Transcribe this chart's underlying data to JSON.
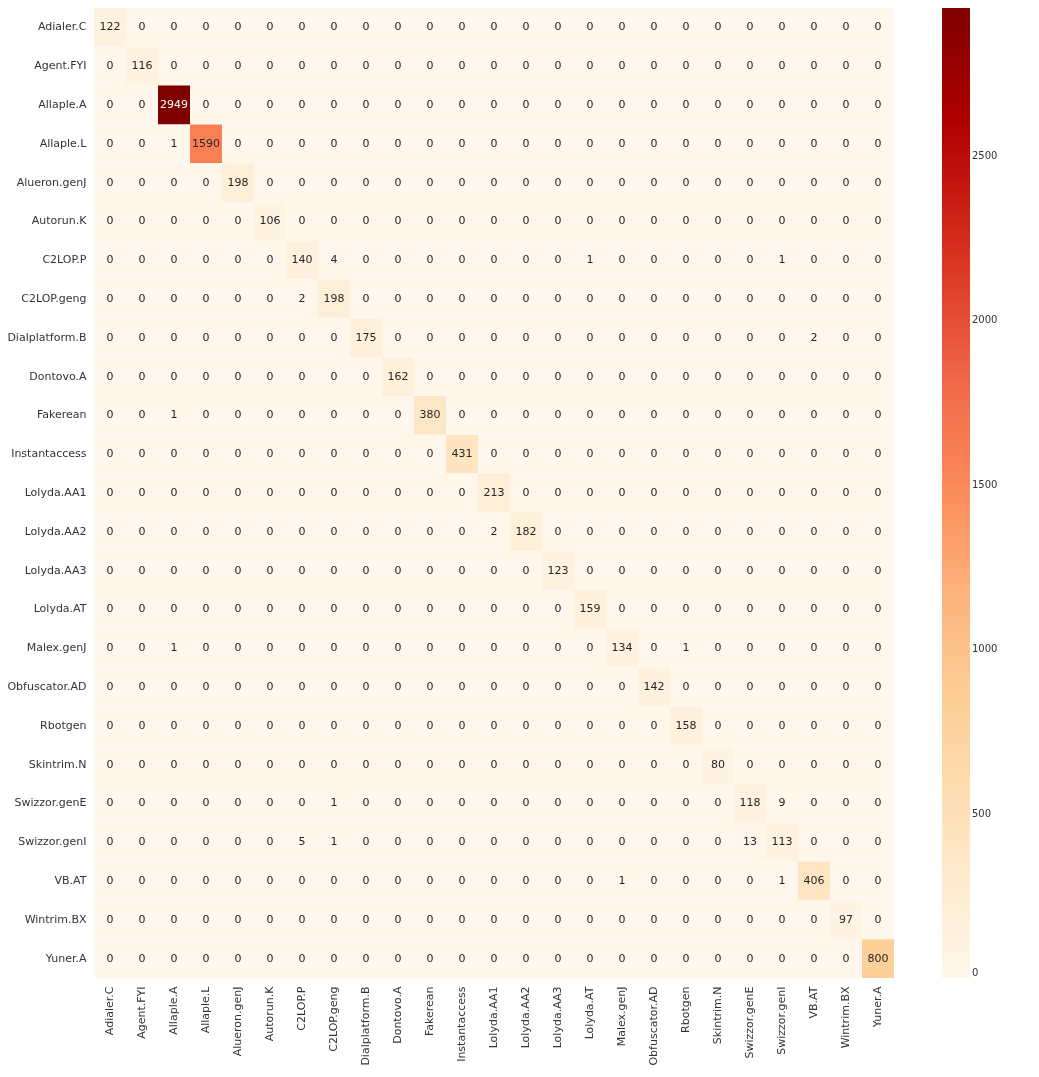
{
  "chart_data": {
    "type": "heatmap",
    "categories": [
      "Adialer.C",
      "Agent.FYI",
      "Allaple.A",
      "Allaple.L",
      "Alueron.genJ",
      "Autorun.K",
      "C2LOP.P",
      "C2LOP.geng",
      "Dialplatform.B",
      "Dontovo.A",
      "Fakerean",
      "Instantaccess",
      "Lolyda.AA1",
      "Lolyda.AA2",
      "Lolyda.AA3",
      "Lolyda.AT",
      "Malex.genJ",
      "Obfuscator.AD",
      "Rbotgen",
      "Skintrim.N",
      "Swizzor.genE",
      "Swizzor.genI",
      "VB.AT",
      "Wintrim.BX",
      "Yuner.A"
    ],
    "y_categories": [
      "Adialer.C",
      "Agent.FYI",
      "Allaple.A",
      "Allaple.L",
      "Alueron.genJ",
      "Autorun.K",
      "C2LOP.P",
      "C2LOP.geng",
      "Dialplatform.B",
      "Dontovo.A",
      "Fakerean",
      "Instantaccess",
      "Lolyda.AA1",
      "Lolyda.AA2",
      "Lolyda.AA3",
      "Lolyda.AT",
      "Malex.genJ",
      "Obfuscator.AD",
      "Rbotgen",
      "Skintrim.N",
      "Swizzor.genE",
      "Swizzor.genI",
      "VB.AT",
      "Wintrim.BX",
      "Yuner.A"
    ],
    "cells": [
      [
        122,
        0,
        0,
        0,
        0,
        0,
        0,
        0,
        0,
        0,
        0,
        0,
        0,
        0,
        0,
        0,
        0,
        0,
        0,
        0,
        0,
        0,
        0,
        0,
        0
      ],
      [
        0,
        116,
        0,
        0,
        0,
        0,
        0,
        0,
        0,
        0,
        0,
        0,
        0,
        0,
        0,
        0,
        0,
        0,
        0,
        0,
        0,
        0,
        0,
        0,
        0
      ],
      [
        0,
        0,
        2949,
        0,
        0,
        0,
        0,
        0,
        0,
        0,
        0,
        0,
        0,
        0,
        0,
        0,
        0,
        0,
        0,
        0,
        0,
        0,
        0,
        0,
        0
      ],
      [
        0,
        0,
        1,
        1590,
        0,
        0,
        0,
        0,
        0,
        0,
        0,
        0,
        0,
        0,
        0,
        0,
        0,
        0,
        0,
        0,
        0,
        0,
        0,
        0,
        0
      ],
      [
        0,
        0,
        0,
        0,
        198,
        0,
        0,
        0,
        0,
        0,
        0,
        0,
        0,
        0,
        0,
        0,
        0,
        0,
        0,
        0,
        0,
        0,
        0,
        0,
        0
      ],
      [
        0,
        0,
        0,
        0,
        0,
        106,
        0,
        0,
        0,
        0,
        0,
        0,
        0,
        0,
        0,
        0,
        0,
        0,
        0,
        0,
        0,
        0,
        0,
        0,
        0
      ],
      [
        0,
        0,
        0,
        0,
        0,
        0,
        140,
        4,
        0,
        0,
        0,
        0,
        0,
        0,
        0,
        1,
        0,
        0,
        0,
        0,
        0,
        1,
        0,
        0,
        0
      ],
      [
        0,
        0,
        0,
        0,
        0,
        0,
        2,
        198,
        0,
        0,
        0,
        0,
        0,
        0,
        0,
        0,
        0,
        0,
        0,
        0,
        0,
        0,
        0,
        0,
        0
      ],
      [
        0,
        0,
        0,
        0,
        0,
        0,
        0,
        0,
        175,
        0,
        0,
        0,
        0,
        0,
        0,
        0,
        0,
        0,
        0,
        0,
        0,
        0,
        2,
        0,
        0
      ],
      [
        0,
        0,
        0,
        0,
        0,
        0,
        0,
        0,
        0,
        162,
        0,
        0,
        0,
        0,
        0,
        0,
        0,
        0,
        0,
        0,
        0,
        0,
        0,
        0,
        0
      ],
      [
        0,
        0,
        1,
        0,
        0,
        0,
        0,
        0,
        0,
        0,
        380,
        0,
        0,
        0,
        0,
        0,
        0,
        0,
        0,
        0,
        0,
        0,
        0,
        0,
        0
      ],
      [
        0,
        0,
        0,
        0,
        0,
        0,
        0,
        0,
        0,
        0,
        0,
        431,
        0,
        0,
        0,
        0,
        0,
        0,
        0,
        0,
        0,
        0,
        0,
        0,
        0
      ],
      [
        0,
        0,
        0,
        0,
        0,
        0,
        0,
        0,
        0,
        0,
        0,
        0,
        213,
        0,
        0,
        0,
        0,
        0,
        0,
        0,
        0,
        0,
        0,
        0,
        0
      ],
      [
        0,
        0,
        0,
        0,
        0,
        0,
        0,
        0,
        0,
        0,
        0,
        0,
        2,
        182,
        0,
        0,
        0,
        0,
        0,
        0,
        0,
        0,
        0,
        0,
        0
      ],
      [
        0,
        0,
        0,
        0,
        0,
        0,
        0,
        0,
        0,
        0,
        0,
        0,
        0,
        0,
        123,
        0,
        0,
        0,
        0,
        0,
        0,
        0,
        0,
        0,
        0
      ],
      [
        0,
        0,
        0,
        0,
        0,
        0,
        0,
        0,
        0,
        0,
        0,
        0,
        0,
        0,
        0,
        159,
        0,
        0,
        0,
        0,
        0,
        0,
        0,
        0,
        0
      ],
      [
        0,
        0,
        1,
        0,
        0,
        0,
        0,
        0,
        0,
        0,
        0,
        0,
        0,
        0,
        0,
        0,
        134,
        0,
        1,
        0,
        0,
        0,
        0,
        0,
        0
      ],
      [
        0,
        0,
        0,
        0,
        0,
        0,
        0,
        0,
        0,
        0,
        0,
        0,
        0,
        0,
        0,
        0,
        0,
        142,
        0,
        0,
        0,
        0,
        0,
        0,
        0
      ],
      [
        0,
        0,
        0,
        0,
        0,
        0,
        0,
        0,
        0,
        0,
        0,
        0,
        0,
        0,
        0,
        0,
        0,
        0,
        158,
        0,
        0,
        0,
        0,
        0,
        0
      ],
      [
        0,
        0,
        0,
        0,
        0,
        0,
        0,
        0,
        0,
        0,
        0,
        0,
        0,
        0,
        0,
        0,
        0,
        0,
        0,
        80,
        0,
        0,
        0,
        0,
        0
      ],
      [
        0,
        0,
        0,
        0,
        0,
        0,
        0,
        1,
        0,
        0,
        0,
        0,
        0,
        0,
        0,
        0,
        0,
        0,
        0,
        0,
        118,
        9,
        0,
        0,
        0
      ],
      [
        0,
        0,
        0,
        0,
        0,
        0,
        5,
        1,
        0,
        0,
        0,
        0,
        0,
        0,
        0,
        0,
        0,
        0,
        0,
        0,
        13,
        113,
        0,
        0,
        0
      ],
      [
        0,
        0,
        0,
        0,
        0,
        0,
        0,
        0,
        0,
        0,
        0,
        0,
        0,
        0,
        0,
        0,
        1,
        0,
        0,
        0,
        0,
        1,
        406,
        0,
        0
      ],
      [
        0,
        0,
        0,
        0,
        0,
        0,
        0,
        0,
        0,
        0,
        0,
        0,
        0,
        0,
        0,
        0,
        0,
        0,
        0,
        0,
        0,
        0,
        0,
        97,
        0
      ],
      [
        0,
        0,
        0,
        0,
        0,
        0,
        0,
        0,
        0,
        0,
        0,
        0,
        0,
        0,
        0,
        0,
        0,
        0,
        0,
        0,
        0,
        0,
        0,
        0,
        800
      ]
    ],
    "clim": [
      0,
      2949
    ],
    "cticks": [
      0,
      500,
      1000,
      1500,
      2000,
      2500
    ],
    "data_labels": true
  }
}
